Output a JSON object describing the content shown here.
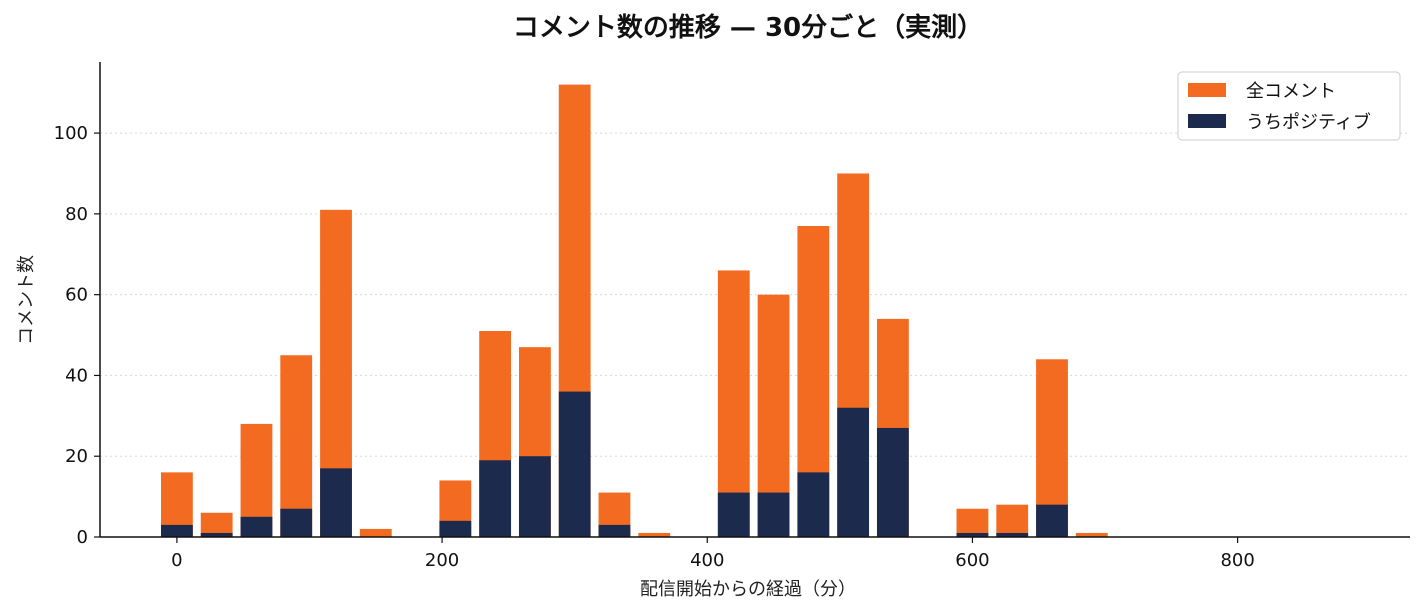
{
  "chart_data": {
    "type": "bar",
    "stacking": "overlay",
    "title": "コメント数の推移 — 30分ごと（実測）",
    "xlabel": "配信開始からの経過（分）",
    "ylabel": "コメント数",
    "x": [
      0,
      30,
      60,
      90,
      120,
      150,
      180,
      210,
      240,
      270,
      300,
      330,
      360,
      390,
      420,
      450,
      480,
      510,
      540,
      570,
      600,
      630,
      660,
      690
    ],
    "bar_width": 24,
    "series": [
      {
        "name": "全コメント",
        "color": "#F26B21",
        "values": [
          16,
          6,
          28,
          45,
          81,
          2,
          0,
          14,
          51,
          47,
          112,
          11,
          1,
          0,
          66,
          60,
          77,
          90,
          54,
          0,
          7,
          8,
          44,
          1
        ]
      },
      {
        "name": "うちポジティブ",
        "color": "#1C2A4D",
        "values": [
          3,
          1,
          5,
          7,
          17,
          0,
          0,
          4,
          19,
          20,
          36,
          3,
          0,
          0,
          11,
          11,
          16,
          32,
          27,
          0,
          1,
          1,
          8,
          0
        ]
      }
    ],
    "xlim": [
      -58,
      930
    ],
    "ylim": [
      0,
      117.6
    ],
    "xticks": [
      0,
      200,
      400,
      600,
      800
    ],
    "yticks": [
      0,
      20,
      40,
      60,
      80,
      100
    ],
    "grid": "y-dotted",
    "legend_position": "top-right"
  }
}
